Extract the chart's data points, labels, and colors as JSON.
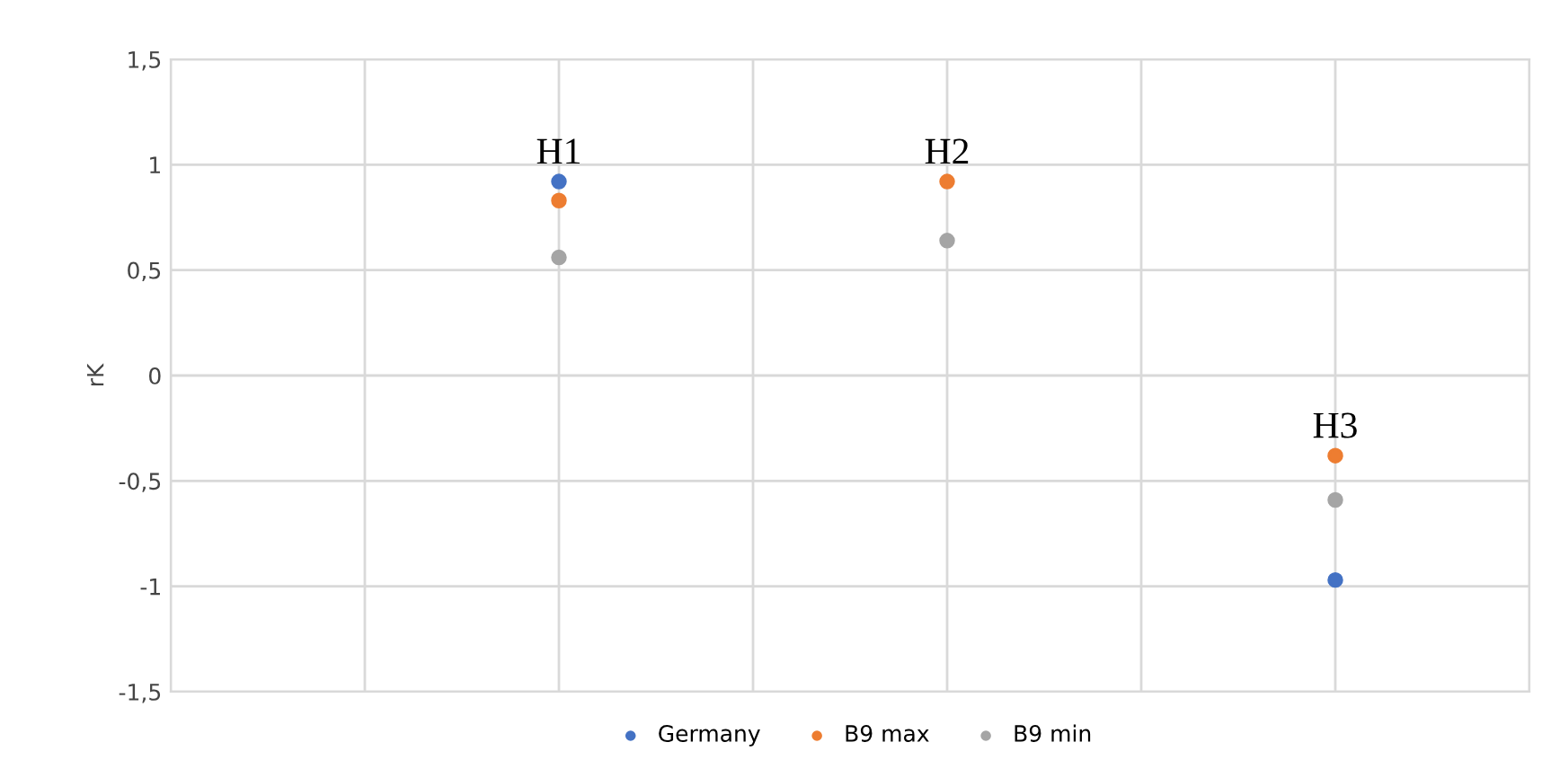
{
  "chart_data": {
    "type": "scatter",
    "ylabel": "rK",
    "categories": [
      null,
      null,
      null
    ],
    "series": [
      {
        "name": "Germany",
        "color": "#4472c4",
        "values": [
          0.92,
          null,
          -0.97
        ]
      },
      {
        "name": "B9 max",
        "color": "#ed7d31",
        "values": [
          0.83,
          0.92,
          -0.38
        ]
      },
      {
        "name": "B9 min",
        "color": "#a5a5a5",
        "values": [
          0.56,
          0.64,
          -0.59
        ]
      }
    ],
    "ylim": [
      -1.5,
      1.5
    ],
    "yticks": [
      {
        "value": -1.5,
        "label": "-1,5"
      },
      {
        "value": -1,
        "label": "-1"
      },
      {
        "value": -0.5,
        "label": "-0,5"
      },
      {
        "value": 0,
        "label": "0"
      },
      {
        "value": 0.5,
        "label": "0,5"
      },
      {
        "value": 1,
        "label": "1"
      },
      {
        "value": 1.5,
        "label": "1,5"
      }
    ],
    "annotations": [
      "H1",
      "H2",
      "H3"
    ],
    "tick_labels": "y",
    "grid": true,
    "legend": "bottom",
    "marker": "circle"
  }
}
